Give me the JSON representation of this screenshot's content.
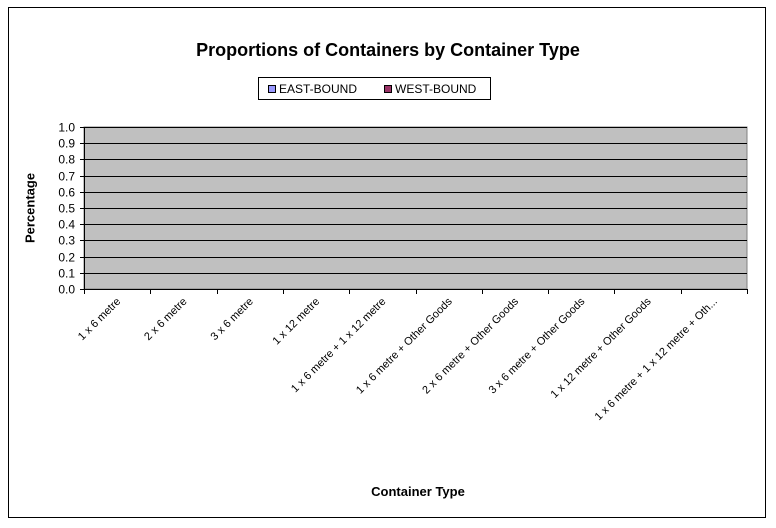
{
  "chart_data": {
    "type": "bar",
    "title": "Proportions of Containers by Container Type",
    "xlabel": "Container Type",
    "ylabel": "Percentage",
    "ylim": [
      0,
      1.0
    ],
    "yticks": [
      "0.0",
      "0.1",
      "0.2",
      "0.3",
      "0.4",
      "0.5",
      "0.6",
      "0.7",
      "0.8",
      "0.9",
      "1.0"
    ],
    "categories": [
      "1 x 6 metre",
      "2 x 6 metre",
      "3 x 6 metre",
      "1 x 12 metre",
      "1 x 6 metre + 1 x 12 metre",
      "1 x 6 metre + Other Goods",
      "2 x 6 metre + Other Goods",
      "3 x 6 metre + Other Goods",
      "1 x 12 metre + Other Goods",
      "1 x 6 metre + 1 x 12 metre + Oth..."
    ],
    "series": [
      {
        "name": "EAST-BOUND",
        "color": "#9999FF",
        "values": [
          0,
          0,
          0,
          0,
          0,
          0,
          0,
          0,
          0,
          0
        ]
      },
      {
        "name": "WEST-BOUND",
        "color": "#993366",
        "values": [
          0,
          0,
          0,
          0,
          0,
          0,
          0,
          0,
          0,
          0
        ]
      }
    ],
    "grid": true,
    "legend_position": "top",
    "plot_background": "#C0C0C0"
  }
}
